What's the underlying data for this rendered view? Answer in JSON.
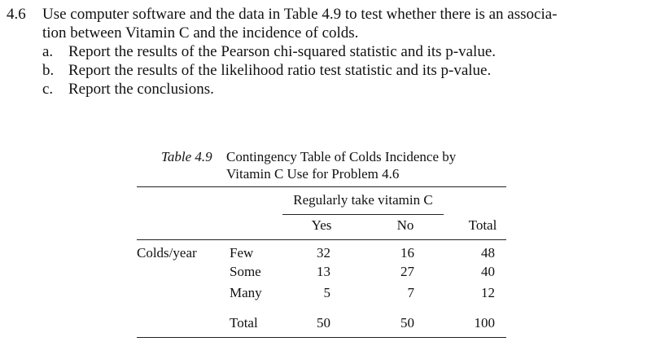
{
  "problem": {
    "number": "4.6",
    "lines": [
      "Use computer software and the data in Table 4.9 to test whether there is an associa-",
      "tion between Vitamin C and the incidence of colds."
    ],
    "items": [
      {
        "label": "a.",
        "text": "Report the results of the Pearson chi-squared statistic and its p-value."
      },
      {
        "label": "b.",
        "text": "Report the results of the likelihood ratio test statistic and its p-value."
      },
      {
        "label": "c.",
        "text": "Report the conclusions."
      }
    ]
  },
  "table": {
    "caption_label": "Table 4.9",
    "caption_lines": [
      "Contingency Table of Colds Incidence by",
      "Vitamin C Use for Problem 4.6"
    ],
    "spanner": "Regularly take vitamin C",
    "columns": [
      "Yes",
      "No",
      "Total"
    ],
    "row_group": "Colds/year",
    "rows": [
      [
        "Few",
        32,
        16,
        48
      ],
      [
        "Some",
        13,
        27,
        40
      ],
      [
        "Many",
        5,
        7,
        12
      ],
      [
        "Total",
        50,
        50,
        100
      ]
    ]
  }
}
